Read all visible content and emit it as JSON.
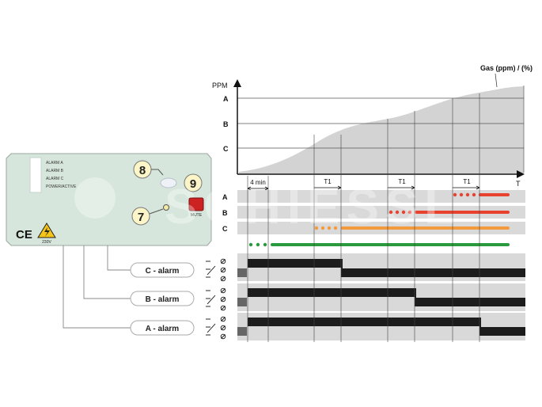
{
  "device": {
    "led_labels": [
      "ALARM A",
      "ALARM B",
      "ALARM C",
      "POWER/ACTIVE"
    ],
    "callout_8": "8",
    "callout_9": "9",
    "callout_7": "7",
    "mute_label": "MUTE",
    "ce_mark": "CE",
    "voltage_label": "230V"
  },
  "chart": {
    "y_axis_title": "PPM",
    "curve_title": "Gas (ppm) / (%)",
    "x_axis_title": "T",
    "level_labels": [
      "A",
      "B",
      "C"
    ],
    "warmup_label": "4 min",
    "delay_labels": [
      "T1",
      "T1",
      "T1"
    ]
  },
  "led_rows": {
    "labels": [
      "A",
      "B",
      "C"
    ],
    "colors": {
      "A": "#e8422f",
      "B": "#e8422f",
      "C": "#f39a3c",
      "power": "#2a9a3e"
    }
  },
  "alarms": {
    "relay_labels": [
      "C - alarm",
      "B - alarm",
      "A - alarm"
    ]
  },
  "watermark": "SCHIESSL",
  "colors": {
    "device_body": "#d6e6dc",
    "curve_fill": "#d3d3d3",
    "band": "#d9d9d9",
    "relay_bar": "#1c1c1c",
    "callout_fill": "#fcf5c8"
  }
}
